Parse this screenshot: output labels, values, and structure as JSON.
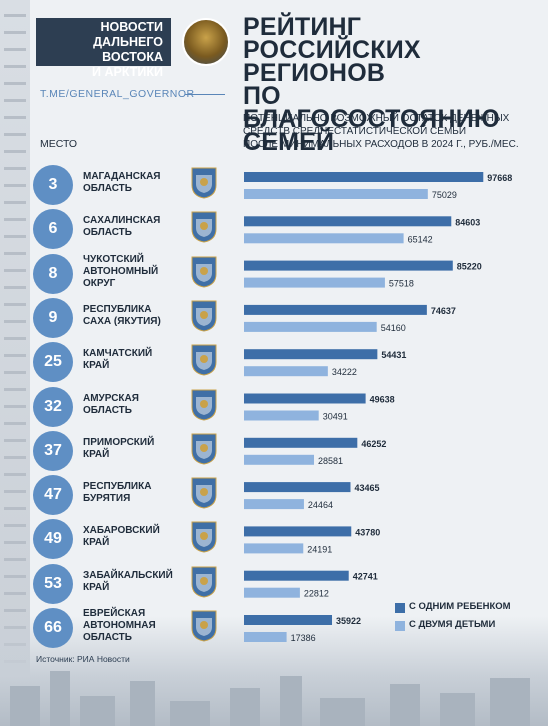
{
  "header": {
    "brand_line1": "НОВОСТИ",
    "brand_line2": "ДАЛЬНЕГО ВОСТОКА",
    "brand_line3": "И АРКТИКИ",
    "title_line1": "РЕЙТИНГ РОССИЙСКИХ",
    "title_line2": "РЕГИОНОВ",
    "title_line3": "ПО БЛАГОСОСТОЯНИЮ",
    "title_line4": "СЕМЕЙ",
    "channel": "T.ME/GENERAL_GOVERNOR",
    "subtitle_line1": "ПОТЕНЦИАЛЬНО ВОЗМОЖНЫЙ ОСТАТОК ДЕНЕЖНЫХ",
    "subtitle_line2": "СРЕДСТВ СРЕДНЕСТАТИСТИЧЕСКОЙ СЕМЬИ",
    "subtitle_line3": "ПОСЛЕ МИНИМАЛЬНЫХ РАСХОДОВ В 2024 Г., РУБ./МЕС.",
    "place_label": "МЕСТО"
  },
  "colors": {
    "dark": "#3d6ea8",
    "light": "#8fb3de",
    "rank_circle": "#5f8fc4"
  },
  "legend": {
    "one_child": "С ОДНИМ РЕБЕНКОМ",
    "two_children": "С ДВУМЯ ДЕТЬМИ"
  },
  "source": "Источник: РИА Новости",
  "chart_data": {
    "type": "bar",
    "orientation": "horizontal",
    "categories": [
      "МАГАДАНСКАЯ ОБЛАСТЬ",
      "САХАЛИНСКАЯ ОБЛАСТЬ",
      "ЧУКОТСКИЙ АВТОНОМНЫЙ ОКРУГ",
      "РЕСПУБЛИКА САХА (ЯКУТИЯ)",
      "КАМЧАТСКИЙ КРАЙ",
      "АМУРСКАЯ ОБЛАСТЬ",
      "ПРИМОРСКИЙ КРАЙ",
      "РЕСПУБЛИКА БУРЯТИЯ",
      "ХАБАРОВСКИЙ КРАЙ",
      "ЗАБАЙКАЛЬСКИЙ КРАЙ",
      "ЕВРЕЙСКАЯ АВТОНОМНАЯ ОБЛАСТЬ"
    ],
    "region_lines": [
      [
        "МАГАДАНСКАЯ",
        "ОБЛАСТЬ"
      ],
      [
        "САХАЛИНСКАЯ",
        "ОБЛАСТЬ"
      ],
      [
        "ЧУКОТСКИЙ",
        "АВТОНОМНЫЙ",
        "ОКРУГ"
      ],
      [
        "РЕСПУБЛИКА",
        "САХА (ЯКУТИЯ)"
      ],
      [
        "КАМЧАТСКИЙ",
        "КРАЙ"
      ],
      [
        "АМУРСКАЯ",
        "ОБЛАСТЬ"
      ],
      [
        "ПРИМОРСКИЙ",
        "КРАЙ"
      ],
      [
        "РЕСПУБЛИКА",
        "БУРЯТИЯ"
      ],
      [
        "ХАБАРОВСКИЙ",
        "КРАЙ"
      ],
      [
        "ЗАБАЙКАЛЬСКИЙ",
        "КРАЙ"
      ],
      [
        "ЕВРЕЙСКАЯ",
        "АВТОНОМНАЯ",
        "ОБЛАСТЬ"
      ]
    ],
    "ranks": [
      "3",
      "6",
      "8",
      "9",
      "25",
      "32",
      "37",
      "47",
      "49",
      "53",
      "66"
    ],
    "series": [
      {
        "name": "С ОДНИМ РЕБЕНКОМ",
        "values": [
          97668,
          84603,
          85220,
          74637,
          54431,
          49638,
          46252,
          43465,
          43780,
          42741,
          35922
        ]
      },
      {
        "name": "С ДВУМЯ ДЕТЬМИ",
        "values": [
          75029,
          65142,
          57518,
          54160,
          34222,
          30491,
          28581,
          24464,
          24191,
          22812,
          17386
        ]
      }
    ],
    "xlim": [
      0,
      100000
    ],
    "grid": false,
    "legend_position": "bottom-right"
  }
}
